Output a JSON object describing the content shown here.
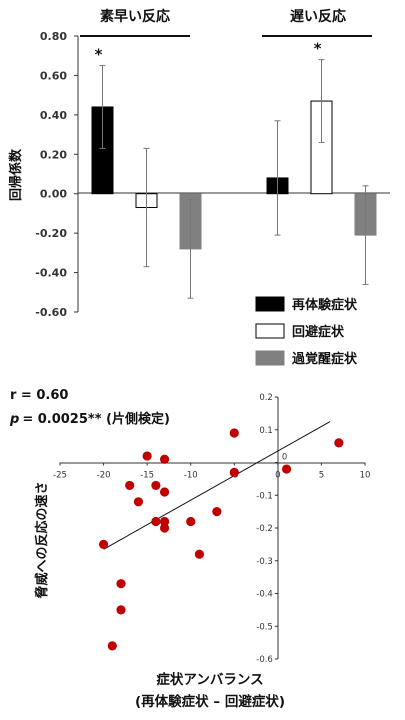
{
  "chart_data": [
    {
      "type": "bar",
      "ylabel": "回帰係数",
      "ylim": [
        -0.6,
        0.8
      ],
      "yticks": [
        "0.80",
        "0.60",
        "0.40",
        "0.20",
        "0.00",
        "-0.20",
        "-0.40",
        "-0.60"
      ],
      "groups": [
        {
          "label": "素早い反応",
          "values": [
            0.44,
            -0.07,
            -0.28
          ],
          "errors": [
            0.21,
            0.3,
            0.25
          ],
          "stars": [
            "*",
            "",
            ""
          ]
        },
        {
          "label": "遅い反応",
          "values": [
            0.08,
            0.47,
            -0.21
          ],
          "errors": [
            0.29,
            0.21,
            0.25
          ],
          "stars": [
            "",
            "*",
            ""
          ]
        }
      ],
      "series": [
        {
          "name": "再体験症状",
          "color": "#000000",
          "stroke": "#000000"
        },
        {
          "name": "回避症状",
          "color": "#ffffff",
          "stroke": "#000000"
        },
        {
          "name": "過覚醒症状",
          "color": "#808080",
          "stroke": "#808080"
        }
      ],
      "legend": "bottom-right"
    },
    {
      "type": "scatter",
      "stats": {
        "r": "r = 0.60",
        "p_symbol": "p",
        "p_value": "= 0.0025** (片側検定)"
      },
      "ylabel": "脅威への反応の速さ",
      "xlabel": "症状アンバランス",
      "xlabel2": "(再体験症状 – 回避症状)",
      "xlim": [
        -25,
        10
      ],
      "ylim": [
        -0.6,
        0.2
      ],
      "xticks": [
        "-25",
        "-20",
        "-15",
        "-10",
        "-5",
        "0",
        "5",
        "10"
      ],
      "yticks": [
        "0.2",
        "0.1",
        "0",
        "-0.1",
        "-0.2",
        "-0.3",
        "-0.4",
        "-0.5",
        "-0.6"
      ],
      "point_color": "#c00000",
      "points": [
        [
          -15,
          0.02
        ],
        [
          -13,
          0.01
        ],
        [
          -5,
          0.09
        ],
        [
          -5,
          -0.03
        ],
        [
          7,
          0.06
        ],
        [
          1,
          -0.02
        ],
        [
          -17,
          -0.07
        ],
        [
          -16,
          -0.12
        ],
        [
          -14,
          -0.07
        ],
        [
          -13,
          -0.09
        ],
        [
          -14,
          -0.18
        ],
        [
          -13,
          -0.18
        ],
        [
          -13,
          -0.2
        ],
        [
          -10,
          -0.18
        ],
        [
          -7,
          -0.15
        ],
        [
          -9,
          -0.28
        ],
        [
          -20,
          -0.25
        ],
        [
          -18,
          -0.37
        ],
        [
          -18,
          -0.45
        ],
        [
          -19,
          -0.56
        ]
      ],
      "trendline": [
        [
          -20,
          -0.265
        ],
        [
          6,
          0.125
        ]
      ]
    }
  ]
}
